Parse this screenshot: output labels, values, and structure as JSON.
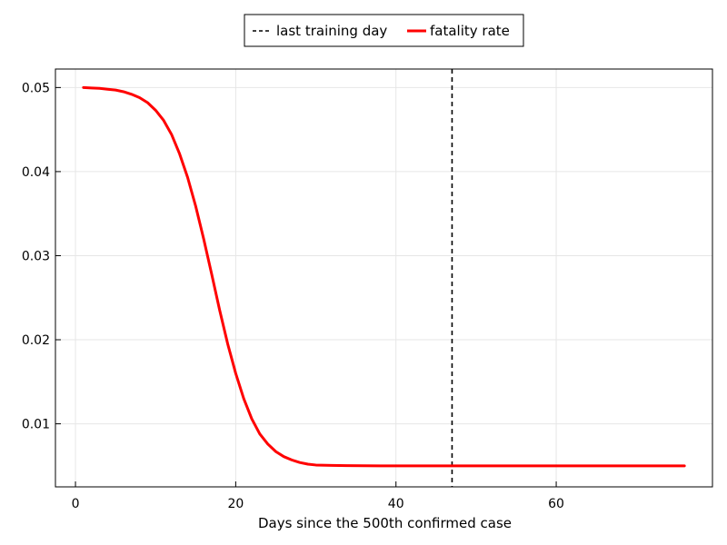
{
  "chart_data": {
    "type": "line",
    "title": "",
    "xlabel": "Days since the 500th confirmed case",
    "ylabel": "",
    "xlim": [
      -2.5,
      79.5
    ],
    "ylim": [
      0.0025,
      0.0522
    ],
    "xticks": [
      0,
      20,
      40,
      60
    ],
    "xtick_labels": [
      "0",
      "20",
      "40",
      "60"
    ],
    "yticks": [
      0.01,
      0.02,
      0.03,
      0.04,
      0.05
    ],
    "ytick_labels": [
      "0.01",
      "0.02",
      "0.03",
      "0.04",
      "0.05"
    ],
    "grid": true,
    "legend_position": "top-center, outside plot",
    "series": [
      {
        "name": "fatality rate",
        "color": "#ff0000",
        "style": "solid",
        "x": [
          1,
          2,
          3,
          4,
          5,
          6,
          7,
          8,
          9,
          10,
          11,
          12,
          13,
          14,
          15,
          16,
          17,
          18,
          19,
          20,
          21,
          22,
          23,
          24,
          25,
          26,
          27,
          28,
          29,
          30,
          32,
          34,
          36,
          38,
          40,
          45,
          50,
          55,
          60,
          65,
          70,
          76
        ],
        "y": [
          0.05,
          0.04995,
          0.0499,
          0.0498,
          0.0497,
          0.0495,
          0.0492,
          0.0488,
          0.0482,
          0.0473,
          0.0461,
          0.0444,
          0.0421,
          0.0393,
          0.0359,
          0.032,
          0.0278,
          0.0235,
          0.0195,
          0.016,
          0.013,
          0.0106,
          0.0088,
          0.0076,
          0.0067,
          0.0061,
          0.0057,
          0.0054,
          0.0052,
          0.0051,
          0.00505,
          0.00502,
          0.00501,
          0.005,
          0.005,
          0.005,
          0.005,
          0.005,
          0.005,
          0.005,
          0.005,
          0.005
        ]
      }
    ],
    "vline": {
      "name": "last training day",
      "x": 47,
      "color": "#000000",
      "style": "dashed"
    },
    "legend": [
      {
        "label": "last training day",
        "style": "dashed",
        "color": "#000000"
      },
      {
        "label": "fatality rate",
        "style": "solid",
        "color": "#ff0000"
      }
    ]
  }
}
